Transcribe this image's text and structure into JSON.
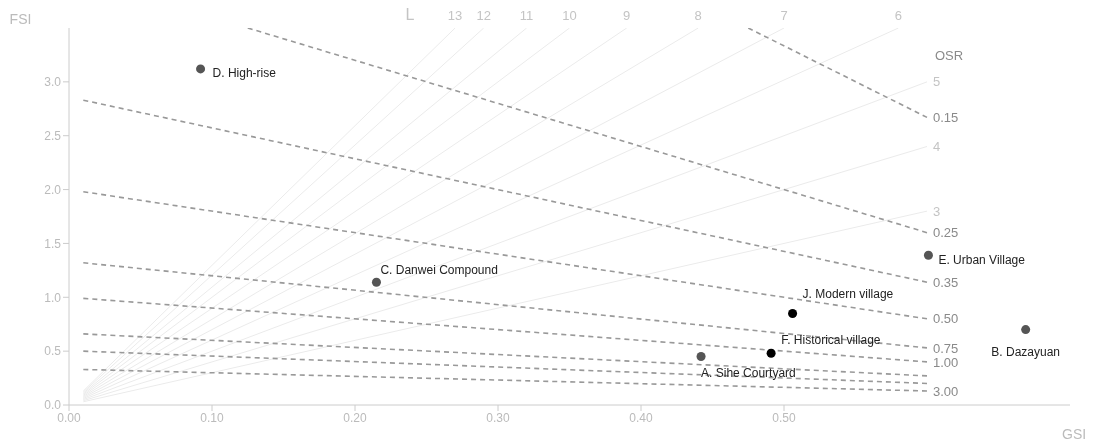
{
  "chart_data": {
    "type": "scatter",
    "xlabel": "GSI",
    "ylabel": "FSI",
    "xlim": [
      0,
      0.7
    ],
    "ylim": [
      0,
      3.5
    ],
    "xticks": [
      {
        "value": 0,
        "label": "0.00"
      },
      {
        "value": 0.1,
        "label": "0.10"
      },
      {
        "value": 0.2,
        "label": "0.20"
      },
      {
        "value": 0.3,
        "label": "0.30"
      },
      {
        "value": 0.4,
        "label": "0.40"
      },
      {
        "value": 0.5,
        "label": "0.50"
      }
    ],
    "yticks": [
      {
        "value": 0,
        "label": "0.0"
      },
      {
        "value": 0.5,
        "label": "0.5"
      },
      {
        "value": 1,
        "label": "1.0"
      },
      {
        "value": 1.5,
        "label": "1.5"
      },
      {
        "value": 2,
        "label": "2.0"
      },
      {
        "value": 2.5,
        "label": "2.5"
      },
      {
        "value": 3,
        "label": "3.0"
      }
    ],
    "series": [
      {
        "name": "3",
        "type": "line",
        "line_style": "solid",
        "marker": "none",
        "color": "#ebebeb",
        "x": [
          0.01,
          0.6
        ],
        "values": [
          0.03,
          1.8
        ]
      },
      {
        "name": "4",
        "type": "line",
        "line_style": "solid",
        "marker": "none",
        "color": "#ebebeb",
        "x": [
          0.01,
          0.6
        ],
        "values": [
          0.04,
          2.4
        ]
      },
      {
        "name": "5",
        "type": "line",
        "line_style": "solid",
        "marker": "none",
        "color": "#ebebeb",
        "x": [
          0.01,
          0.6
        ],
        "values": [
          0.05,
          3.0
        ]
      },
      {
        "name": "6",
        "type": "line",
        "line_style": "solid",
        "marker": "none",
        "color": "#ebebeb",
        "x": [
          0.01,
          0.58
        ],
        "values": [
          0.06,
          3.5
        ]
      },
      {
        "name": "7",
        "type": "line",
        "line_style": "solid",
        "marker": "none",
        "color": "#ebebeb",
        "x": [
          0.01,
          0.5
        ],
        "values": [
          0.07,
          3.5
        ]
      },
      {
        "name": "8",
        "type": "line",
        "line_style": "solid",
        "marker": "none",
        "color": "#ebebeb",
        "x": [
          0.01,
          0.44
        ],
        "values": [
          0.08,
          3.5
        ]
      },
      {
        "name": "9",
        "type": "line",
        "line_style": "solid",
        "marker": "none",
        "color": "#ebebeb",
        "x": [
          0.01,
          0.39
        ],
        "values": [
          0.09,
          3.5
        ]
      },
      {
        "name": "10",
        "type": "line",
        "line_style": "solid",
        "marker": "none",
        "color": "#ebebeb",
        "x": [
          0.01,
          0.35
        ],
        "values": [
          0.1,
          3.5
        ]
      },
      {
        "name": "11",
        "type": "line",
        "line_style": "solid",
        "marker": "none",
        "color": "#ebebeb",
        "x": [
          0.01,
          0.32
        ],
        "values": [
          0.11,
          3.5
        ]
      },
      {
        "name": "12",
        "type": "line",
        "line_style": "solid",
        "marker": "none",
        "color": "#ebebeb",
        "x": [
          0.01,
          0.29
        ],
        "values": [
          0.12,
          3.5
        ]
      },
      {
        "name": "13",
        "type": "line",
        "line_style": "solid",
        "marker": "none",
        "color": "#ebebeb",
        "x": [
          0.01,
          0.27
        ],
        "values": [
          0.13,
          3.5
        ]
      },
      {
        "name": "0.15",
        "type": "line",
        "line_style": "dashed",
        "marker": "none",
        "color": "#999999",
        "x": [
          0.475,
          0.6
        ],
        "values": [
          3.5,
          2.67
        ]
      },
      {
        "name": "0.25",
        "type": "line",
        "line_style": "dashed",
        "marker": "none",
        "color": "#999999",
        "x": [
          0.125,
          0.6
        ],
        "values": [
          3.5,
          1.6
        ]
      },
      {
        "name": "0.35",
        "type": "line",
        "line_style": "dashed",
        "marker": "none",
        "color": "#999999",
        "x": [
          0.01,
          0.6
        ],
        "values": [
          2.83,
          1.14
        ]
      },
      {
        "name": "0.50",
        "type": "line",
        "line_style": "dashed",
        "marker": "none",
        "color": "#999999",
        "x": [
          0.01,
          0.6
        ],
        "values": [
          1.98,
          0.8
        ]
      },
      {
        "name": "0.75",
        "type": "line",
        "line_style": "dashed",
        "marker": "none",
        "color": "#999999",
        "x": [
          0.01,
          0.6
        ],
        "values": [
          1.32,
          0.53
        ]
      },
      {
        "name": "1.00",
        "type": "line",
        "line_style": "dashed",
        "marker": "none",
        "color": "#999999",
        "x": [
          0.01,
          0.6
        ],
        "values": [
          0.99,
          0.4
        ]
      },
      {
        "type": "line",
        "line_style": "dashed",
        "marker": "none",
        "color": "#999999",
        "x": [
          0.01,
          0.6
        ],
        "values": [
          0.66,
          0.27
        ]
      },
      {
        "type": "line",
        "line_style": "dashed",
        "marker": "none",
        "color": "#999999",
        "x": [
          0.01,
          0.6
        ],
        "values": [
          0.5,
          0.2
        ]
      },
      {
        "name": "3.00",
        "type": "line",
        "line_style": "dashed",
        "marker": "none",
        "color": "#999999",
        "x": [
          0.01,
          0.6
        ],
        "values": [
          0.33,
          0.13
        ]
      },
      {
        "marker": "circle",
        "color": "#555555",
        "x": [
          0.442,
          0.669,
          0.215,
          0.092,
          0.601
        ],
        "values": [
          0.45,
          0.7,
          1.14,
          3.12,
          1.39
        ]
      },
      {
        "marker": "circle",
        "color": "#000000",
        "x": [
          0.491,
          0.506
        ],
        "values": [
          0.48,
          0.85
        ]
      }
    ],
    "annotations": [
      "L",
      "OSR",
      {
        "text": "A. Sihe Courtyard",
        "x": 0.442,
        "y": 0.45
      },
      {
        "text": "B. Dazayuan",
        "x": 0.669,
        "y": 0.7
      },
      {
        "text": "C. Danwei Compound",
        "x": 0.215,
        "y": 1.14
      },
      {
        "text": "D. High-rise",
        "x": 0.092,
        "y": 3.12
      },
      {
        "text": "E. Urban Village",
        "x": 0.601,
        "y": 1.39
      },
      {
        "text": "F. Historical village",
        "x": 0.491,
        "y": 0.48
      },
      {
        "text": "J. Modern village",
        "x": 0.506,
        "y": 0.85
      }
    ]
  }
}
